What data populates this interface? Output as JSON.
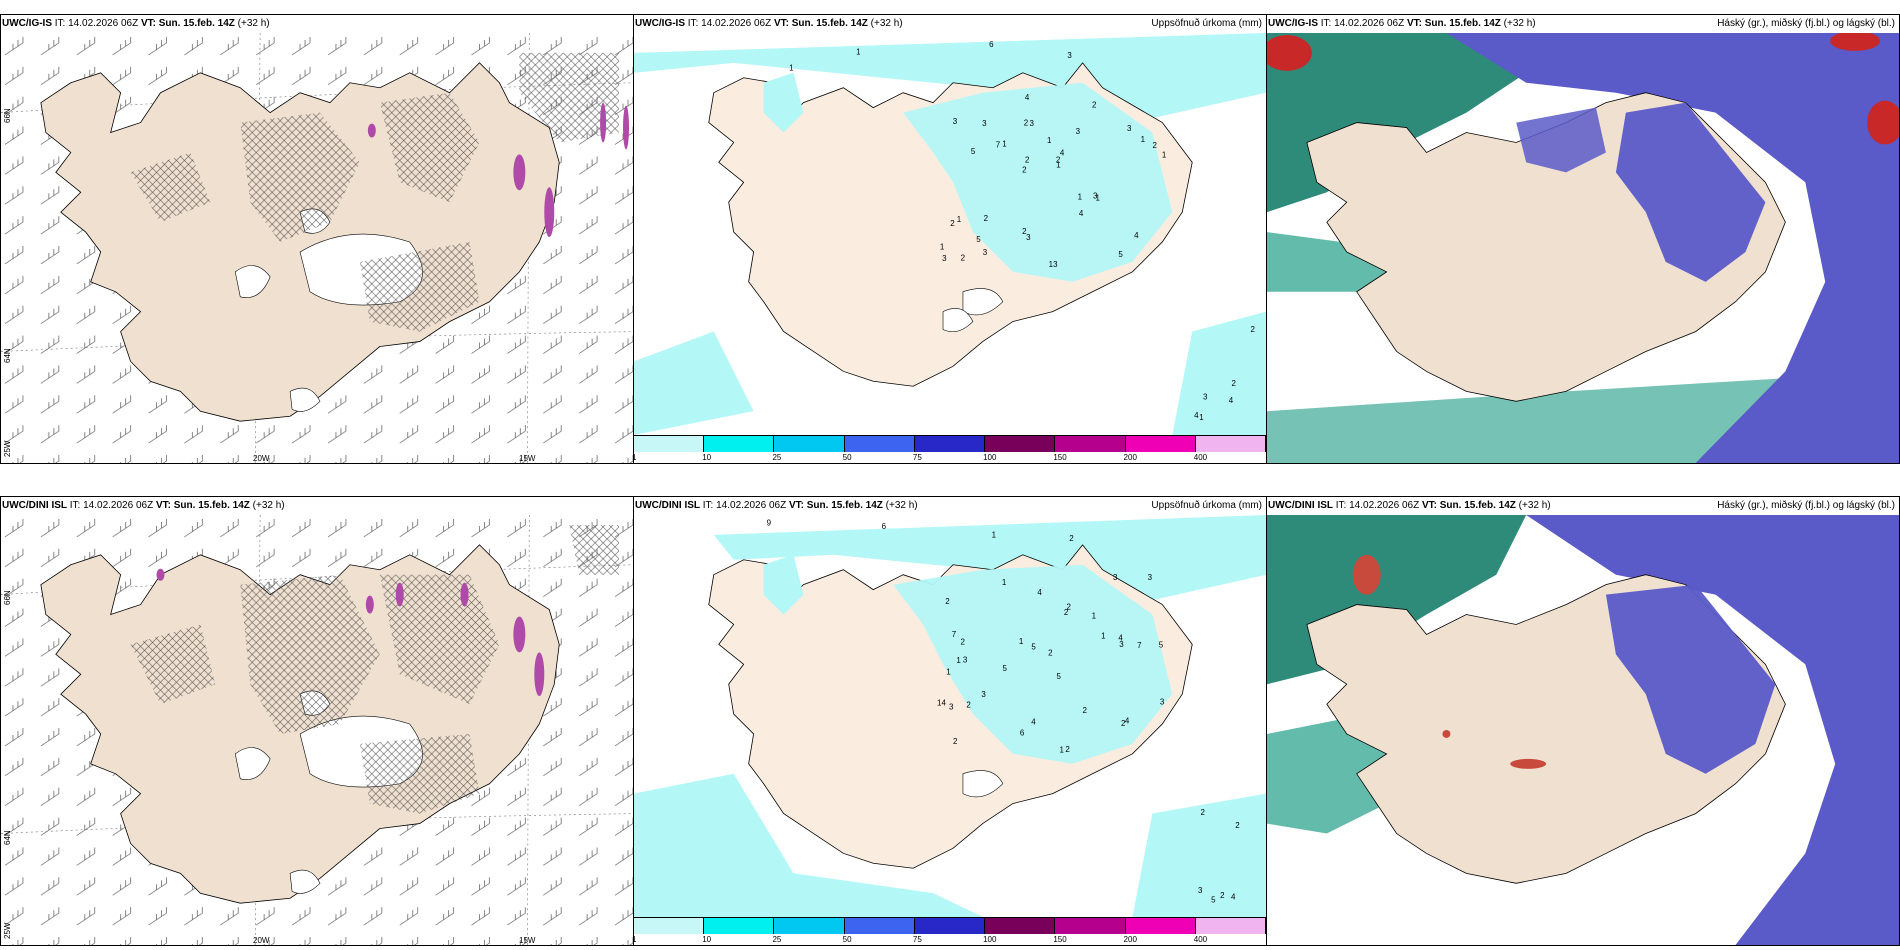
{
  "panels": [
    {
      "id": "r1c1",
      "model": "UWC/IG-IS",
      "it_label": "IT:",
      "it": "14.02.2026 06Z",
      "vt_label": "VT:",
      "vt": "Sun. 15.feb. 14Z",
      "lead": "(+32 h)",
      "title": "",
      "type": "wind"
    },
    {
      "id": "r1c2",
      "model": "UWC/IG-IS",
      "it_label": "IT:",
      "it": "14.02.2026 06Z",
      "vt_label": "VT:",
      "vt": "Sun. 15.feb. 14Z",
      "lead": "(+32 h)",
      "title": "Uppsöfnuð úrkoma (mm)",
      "type": "precip"
    },
    {
      "id": "r1c3",
      "model": "UWC/IG-IS",
      "it_label": "IT:",
      "it": "14.02.2026 06Z",
      "vt_label": "VT:",
      "vt": "Sun. 15.feb. 14Z",
      "lead": "(+32 h)",
      "title": "Háský (gr.), miðský (fj.bl.) og lágský (bl.)",
      "type": "cloud"
    },
    {
      "id": "r2c1",
      "model": "UWC/DINI ISL",
      "it_label": "IT:",
      "it": "14.02.2026 06Z",
      "vt_label": "VT:",
      "vt": "Sun. 15.feb. 14Z",
      "lead": "(+32 h)",
      "title": "",
      "type": "wind"
    },
    {
      "id": "r2c2",
      "model": "UWC/DINI ISL",
      "it_label": "IT:",
      "it": "14.02.2026 06Z",
      "vt_label": "VT:",
      "vt": "Sun. 15.feb. 14Z",
      "lead": "(+32 h)",
      "title": "Uppsöfnuð úrkoma (mm)",
      "type": "precip"
    },
    {
      "id": "r2c3",
      "model": "UWC/DINI ISL",
      "it_label": "IT:",
      "it": "14.02.2026 06Z",
      "vt_label": "VT:",
      "vt": "Sun. 15.feb. 14Z",
      "lead": "(+32 h)",
      "title": "Háský (gr.), miðský (fj.bl.) og lágský (bl.)",
      "type": "cloud"
    }
  ],
  "axes": {
    "lat_66": "66N",
    "lat_64": "64N",
    "lon_25": "25W",
    "lon_20": "20W",
    "lon_15": "15W"
  },
  "colorbar": {
    "labels": [
      "1",
      "10",
      "25",
      "50",
      "75",
      "100",
      "150",
      "200",
      "400"
    ],
    "colors": [
      "#c8f7f7",
      "#00f0f0",
      "#00c8f0",
      "#3c64f0",
      "#2828c8",
      "#78005a",
      "#b4008c",
      "#f000b4",
      "#f0b4f0"
    ]
  },
  "colors": {
    "land": "#f0e0d0",
    "precip_light": "#b4f7f7",
    "cloud_high": "#3caa96",
    "cloud_mid": "#5a5ac8",
    "cloud_low": "#80b4f0"
  },
  "precip_labels_top": [
    "1",
    "1",
    "6",
    "3",
    "3",
    "2",
    "2",
    "1",
    "1",
    "1",
    "1",
    "5",
    "3",
    "4",
    "1",
    "3",
    "4",
    "1",
    "1",
    "1",
    "2",
    "2",
    "2",
    "3",
    "2",
    "2",
    "5",
    "4",
    "3",
    "13",
    "7",
    "5",
    "4",
    "3",
    "2",
    "2",
    "3",
    "3",
    "1",
    "2",
    "3",
    "2",
    "2",
    "4",
    "3",
    "1",
    "4"
  ],
  "precip_labels_bot": [
    "9",
    "6",
    "1",
    "2",
    "5",
    "3",
    "2",
    "1",
    "1",
    "2",
    "2",
    "2",
    "1",
    "5",
    "1",
    "2",
    "4",
    "3",
    "1",
    "3",
    "2",
    "1",
    "5",
    "7",
    "14",
    "7",
    "5",
    "3",
    "4",
    "3",
    "2",
    "2",
    "2",
    "1",
    "2",
    "3",
    "4",
    "6",
    "3",
    "4",
    "3",
    "5",
    "4",
    "2",
    "2",
    "2"
  ]
}
